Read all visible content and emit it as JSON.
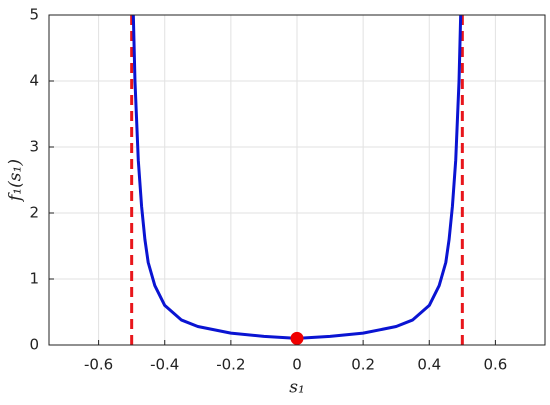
{
  "chart_data": {
    "type": "line",
    "xlabel": "s₁",
    "ylabel": "f₁(s₁)",
    "x": [
      -0.495,
      -0.49,
      -0.48,
      -0.47,
      -0.46,
      -0.45,
      -0.43,
      -0.4,
      -0.35,
      -0.3,
      -0.2,
      -0.1,
      0,
      0.1,
      0.2,
      0.3,
      0.35,
      0.4,
      0.43,
      0.45,
      0.46,
      0.47,
      0.48,
      0.49,
      0.495
    ],
    "series": [
      {
        "color": "#0a14d2",
        "values": [
          5,
          4,
          2.8,
          2.1,
          1.6,
          1.25,
          0.9,
          0.6,
          0.38,
          0.28,
          0.18,
          0.13,
          0.1,
          0.13,
          0.18,
          0.28,
          0.38,
          0.6,
          0.9,
          1.25,
          1.6,
          2.1,
          2.8,
          4,
          5
        ]
      }
    ],
    "vlines": {
      "values": [
        -0.5,
        0.5
      ],
      "color": "#e8161b"
    },
    "points": {
      "x": [
        0
      ],
      "y": [
        0.1
      ],
      "color": "#f00000"
    },
    "xlim": [
      -0.75,
      0.75
    ],
    "ylim": [
      0,
      5
    ],
    "xticks": [
      -0.6,
      -0.4,
      -0.2,
      0,
      0.2,
      0.4,
      0.6
    ],
    "yticks": [
      0,
      1,
      2,
      3,
      4,
      5
    ],
    "grid": true
  }
}
